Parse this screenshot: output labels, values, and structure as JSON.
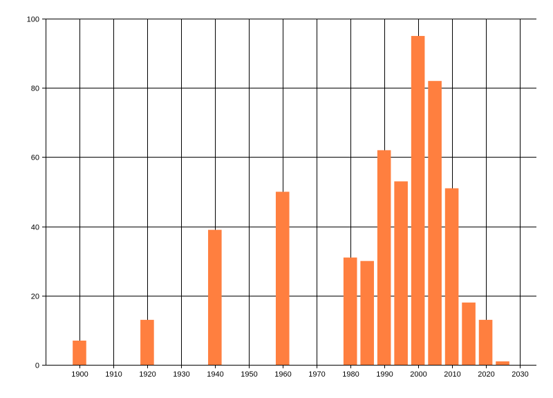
{
  "chart_data": {
    "type": "bar",
    "title": "",
    "xlabel": "",
    "ylabel": "",
    "x": [
      1900,
      1920,
      1940,
      1960,
      1980,
      1985,
      1990,
      1995,
      2000,
      2005,
      2010,
      2015,
      2020,
      2025
    ],
    "values": [
      7,
      13,
      39,
      50,
      31,
      30,
      62,
      53,
      95,
      82,
      51,
      18,
      13,
      1
    ],
    "xlim": [
      1890,
      2035
    ],
    "ylim": [
      0,
      100
    ],
    "x_ticks": [
      1900,
      1910,
      1920,
      1930,
      1940,
      1950,
      1960,
      1970,
      1980,
      1990,
      2000,
      2010,
      2020,
      2030
    ],
    "y_ticks": [
      0,
      20,
      40,
      60,
      80,
      100
    ],
    "grid": true,
    "legend": "none",
    "colors": {
      "bar": "#ff7f3f",
      "grid": "#000000",
      "axis": "#000000"
    }
  }
}
